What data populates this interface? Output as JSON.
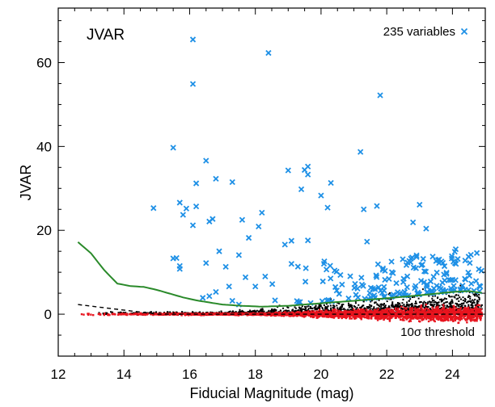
{
  "chart_data": {
    "type": "scatter",
    "title": "JVAR",
    "xlabel": "Fiducial Magnitude (mag)",
    "ylabel": "JVAR",
    "xlim": [
      12,
      25
    ],
    "ylim": [
      -10,
      73
    ],
    "x_ticks": [
      "12",
      "14",
      "16",
      "18",
      "20",
      "22",
      "24"
    ],
    "y_ticks": [
      "0",
      "20",
      "40",
      "60"
    ],
    "grid": false,
    "legend": {
      "label": "235 variables",
      "position": "top-right",
      "marker": "x",
      "color": "#1e90e6"
    },
    "threshold_label": "10σ threshold",
    "colors": {
      "variables": "#1e90e6",
      "nonvariables": "#000000",
      "corrected": "#e8141e",
      "threshold": "#2a8a2a",
      "median": "#000000"
    },
    "variables_highlight": [
      [
        16.1,
        65.5
      ],
      [
        18.4,
        62.3
      ],
      [
        16.1,
        54.9
      ],
      [
        21.8,
        52.2
      ],
      [
        15.5,
        39.7
      ],
      [
        21.2,
        38.7
      ],
      [
        16.5,
        36.6
      ],
      [
        19.6,
        35.2
      ],
      [
        19.5,
        34.4
      ],
      [
        19.0,
        34.3
      ],
      [
        19.6,
        33.3
      ],
      [
        16.8,
        32.3
      ],
      [
        17.3,
        31.5
      ],
      [
        16.2,
        31.2
      ],
      [
        20.3,
        31.3
      ],
      [
        19.4,
        29.8
      ],
      [
        20.0,
        28.3
      ],
      [
        15.7,
        26.6
      ],
      [
        23.0,
        26.1
      ],
      [
        16.2,
        25.7
      ],
      [
        15.9,
        25.2
      ],
      [
        14.9,
        25.3
      ],
      [
        20.2,
        25.4
      ],
      [
        21.3,
        25.0
      ],
      [
        21.7,
        25.8
      ],
      [
        18.2,
        24.2
      ],
      [
        15.8,
        23.7
      ],
      [
        16.7,
        22.7
      ],
      [
        17.6,
        22.5
      ],
      [
        16.6,
        22.1
      ],
      [
        22.8,
        21.9
      ],
      [
        16.1,
        21.2
      ],
      [
        18.1,
        20.9
      ],
      [
        23.2,
        20.4
      ],
      [
        17.8,
        18.2
      ],
      [
        19.1,
        17.5
      ],
      [
        19.6,
        17.6
      ],
      [
        21.4,
        17.3
      ],
      [
        24.1,
        15.5
      ],
      [
        18.9,
        16.6
      ],
      [
        16.9,
        15.0
      ],
      [
        17.5,
        14.1
      ],
      [
        15.6,
        13.4
      ],
      [
        15.5,
        13.3
      ],
      [
        20.1,
        12.6
      ],
      [
        16.5,
        12.2
      ],
      [
        15.7,
        11.5
      ],
      [
        15.7,
        10.8
      ],
      [
        19.1,
        12.0
      ],
      [
        17.1,
        11.3
      ],
      [
        18.3,
        9.0
      ],
      [
        17.7,
        8.8
      ],
      [
        17.2,
        6.6
      ],
      [
        18.0,
        6.6
      ],
      [
        16.8,
        5.3
      ],
      [
        16.4,
        3.9
      ],
      [
        16.6,
        4.3
      ],
      [
        17.3,
        3.2
      ],
      [
        17.5,
        2.3
      ],
      [
        18.6,
        3.3
      ]
    ]
  }
}
